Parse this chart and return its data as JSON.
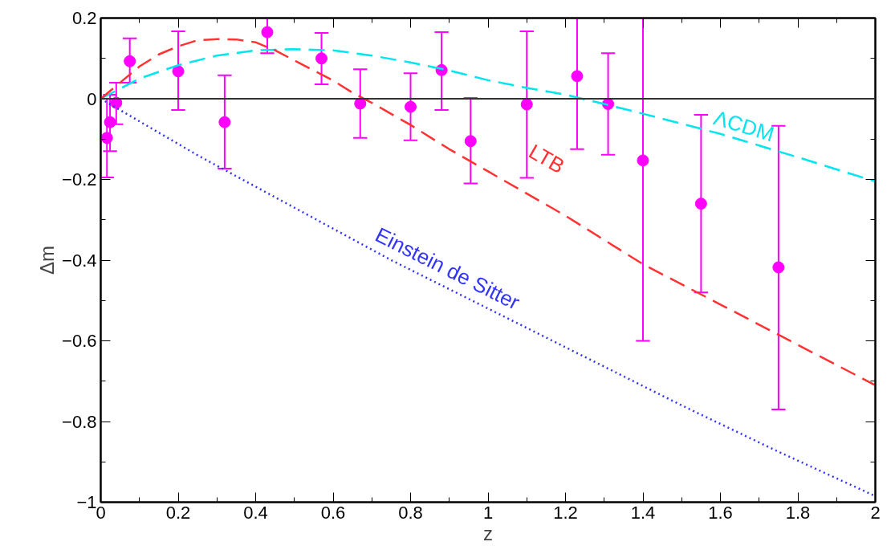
{
  "chart_data": {
    "type": "scatter",
    "xlabel": "z",
    "ylabel": "Δm",
    "xlim": [
      0,
      2
    ],
    "ylim": [
      -1,
      0.2
    ],
    "xticks": [
      0,
      0.2,
      0.4,
      0.6,
      0.8,
      1,
      1.2,
      1.4,
      1.6,
      1.8,
      2
    ],
    "yticks": [
      -1,
      -0.8,
      -0.6,
      -0.4,
      -0.2,
      0,
      0.2
    ],
    "grid": false,
    "ref_lines": [
      {
        "axis": "y",
        "value": 0,
        "color": "#333333",
        "line_style": "solid"
      }
    ],
    "series": [
      {
        "color": "#ff00ff",
        "marker": "circle",
        "x": [
          0.016,
          0.024,
          0.04,
          0.075,
          0.2,
          0.32,
          0.43,
          0.57,
          0.67,
          0.8,
          0.88,
          0.955,
          1.1,
          1.23,
          1.31,
          1.4,
          1.55,
          1.75
        ],
        "values": [
          -0.097,
          -0.058,
          -0.01,
          0.093,
          0.068,
          -0.058,
          0.165,
          0.1,
          -0.012,
          -0.02,
          0.071,
          -0.105,
          -0.014,
          0.056,
          -0.013,
          -0.153,
          -0.26,
          -0.418
        ],
        "errors": [
          [
            -0.195,
            0.0
          ],
          [
            -0.13,
            0.01
          ],
          [
            -0.063,
            0.04
          ],
          [
            0.04,
            0.15
          ],
          [
            -0.028,
            0.167
          ],
          [
            -0.173,
            0.058
          ],
          [
            0.113,
            0.2
          ],
          [
            0.036,
            0.163
          ],
          [
            -0.097,
            0.073
          ],
          [
            -0.103,
            0.063
          ],
          [
            -0.028,
            0.165
          ],
          [
            -0.21,
            0.002
          ],
          [
            -0.196,
            0.167
          ],
          [
            -0.125,
            0.2
          ],
          [
            -0.139,
            0.113
          ],
          [
            -0.6,
            0.2
          ],
          [
            -0.48,
            -0.04
          ],
          [
            -0.77,
            -0.067
          ]
        ]
      },
      {
        "type": "line",
        "name": "ΛCDM",
        "color": "#00e5ee",
        "line_style": "dashed",
        "x": [
          0,
          0.1,
          0.2,
          0.3,
          0.4,
          0.5,
          0.6,
          0.7,
          0.8,
          0.9,
          1.0,
          1.1,
          1.2,
          1.3,
          1.4,
          1.5,
          1.6,
          1.7,
          1.8,
          1.9,
          2.0
        ],
        "values": [
          0,
          0.05,
          0.083,
          0.107,
          0.12,
          0.123,
          0.12,
          0.107,
          0.09,
          0.07,
          0.046,
          0.027,
          0.01,
          -0.013,
          -0.037,
          -0.062,
          -0.087,
          -0.116,
          -0.145,
          -0.175,
          -0.205
        ]
      },
      {
        "type": "line",
        "name": "LTB",
        "color": "#ff3333",
        "line_style": "dashed",
        "x": [
          0,
          0.05,
          0.1,
          0.15,
          0.2,
          0.25,
          0.3,
          0.35,
          0.4,
          0.45,
          0.5,
          0.55,
          0.6,
          0.65,
          0.7,
          0.8,
          0.9,
          1.0,
          1.2,
          1.4,
          1.6,
          1.8,
          2.0
        ],
        "values": [
          0,
          0.04,
          0.08,
          0.11,
          0.13,
          0.145,
          0.148,
          0.147,
          0.14,
          0.12,
          0.095,
          0.07,
          0.045,
          0.015,
          -0.01,
          -0.065,
          -0.125,
          -0.18,
          -0.29,
          -0.41,
          -0.51,
          -0.61,
          -0.71
        ]
      },
      {
        "type": "line",
        "name": "Einstein de Sitter",
        "color": "#3333ff",
        "line_style": "dotted",
        "x": [
          0,
          0.25,
          0.5,
          0.75,
          1.0,
          1.25,
          1.5,
          1.75,
          2.0
        ],
        "values": [
          0,
          -0.14,
          -0.27,
          -0.4,
          -0.52,
          -0.64,
          -0.76,
          -0.875,
          -0.985
        ]
      }
    ]
  }
}
